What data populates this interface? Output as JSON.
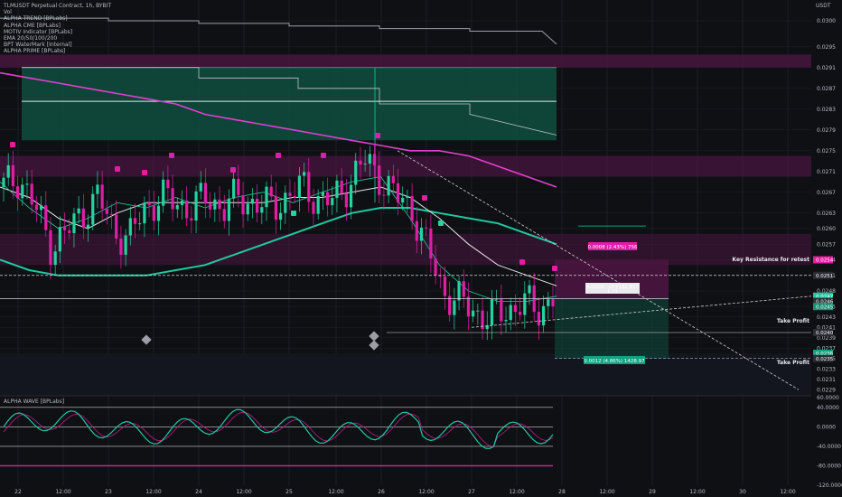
{
  "legend": {
    "symbol_line": "TLMUSDT Perpetual Contract, 1h, BYBIT",
    "indicators": [
      "Vol",
      "ALPHA TREND [BPLabs]",
      "ALPHA CME [BPLabs]",
      "MOTIV Indicator [BPLabs]",
      "EMA 20/50/100/200",
      "BPT WaterMark [Internal]",
      "ALPHA PRIME [BPLabs]"
    ]
  },
  "oscillator": {
    "title": "ALPHA WAVE [BPLabs]"
  },
  "annotations": {
    "key_resistance": "Key Resistance for retest",
    "take_profit_1": "Take Profit",
    "take_profit_2": "Take Profit",
    "position_box": "0.0012 (4.86%) 1428.97",
    "position_mid": "0.0003 · 257142.857",
    "position_mid_2": "1.71",
    "resistance_tag": "0.0008 (2.43%) 756"
  },
  "colors": {
    "bg": "#0f1014",
    "up": "#26d3a0",
    "down": "#e01ea5",
    "ema_magenta": "#e040d0",
    "ema_teal": "#1fc9a0",
    "ema_white": "#e6e6e6",
    "ema_gray": "#9aa0a6",
    "cloud_green": "#0f4d3e",
    "cloud_magenta": "#4a1540",
    "grid": "#1c1e24"
  },
  "chart_data": [
    {
      "type": "candlestick",
      "title": "TLMUSDT Perpetual Contract, 1h, BYBIT",
      "ylabel": "USDT",
      "ylim": [
        0.0228,
        0.0304
      ],
      "y_ticks": [
        "0.0300",
        "0.0295",
        "0.0291",
        "0.0287",
        "0.0283",
        "0.0279",
        "0.0275",
        "0.0271",
        "0.0267",
        "0.0263",
        "0.0260",
        "0.0257",
        "0.0254",
        "0.0251",
        "0.0248",
        "0.0245",
        "0.0243",
        "0.0241",
        "0.0239",
        "0.0237",
        "0.0235",
        "0.0233",
        "0.0231",
        "0.0229"
      ],
      "x_ticks": [
        "22",
        "12:00",
        "23",
        "12:00",
        "24",
        "12:00",
        "25",
        "12:00",
        "26",
        "12:00",
        "27",
        "12:00",
        "28",
        "12:00",
        "29",
        "12:00",
        "30",
        "12:00"
      ],
      "price_tags": [
        "0.0254",
        "0.0251",
        "0.0247",
        "0.0246",
        "0.0245",
        "0.0240",
        "0.0236",
        "0.0235"
      ],
      "close_series": [
        0.0268,
        0.027,
        0.0264,
        0.0257,
        0.0259,
        0.0263,
        0.0266,
        0.026,
        0.0258,
        0.0264,
        0.0266,
        0.0265,
        0.0264,
        0.0266,
        0.0264,
        0.0266,
        0.0265,
        0.0264,
        0.0266,
        0.0268,
        0.0266,
        0.0265,
        0.0269,
        0.0273,
        0.027,
        0.0266,
        0.0264,
        0.0256,
        0.0248,
        0.0246,
        0.0244,
        0.0243,
        0.0244,
        0.0246,
        0.0244,
        0.0247
      ],
      "ema_200": [
        0.029,
        0.0289,
        0.0288,
        0.0287,
        0.0286,
        0.0285,
        0.0284,
        0.0282,
        0.0281,
        0.028,
        0.0279,
        0.0278,
        0.0277,
        0.0276,
        0.0275,
        0.0275,
        0.0274,
        0.0272,
        0.027,
        0.0268
      ],
      "ema_100": [
        0.0254,
        0.0252,
        0.0251,
        0.0251,
        0.0251,
        0.0251,
        0.0252,
        0.0253,
        0.0255,
        0.0257,
        0.0259,
        0.0261,
        0.0263,
        0.0264,
        0.0264,
        0.0263,
        0.0262,
        0.0261,
        0.0259,
        0.0257
      ],
      "resistance_level": 0.0251,
      "take_profit_levels": [
        0.024,
        0.0235
      ]
    },
    {
      "type": "line",
      "title": "ALPHA WAVE [BPLabs]",
      "ylim": [
        -120,
        60
      ],
      "y_ticks": [
        "60.0000",
        "40.0000",
        "0.0000",
        "-40.0000",
        "-80.0000",
        "-120.0000"
      ],
      "levels": [
        40,
        0,
        -40,
        -80
      ]
    }
  ]
}
